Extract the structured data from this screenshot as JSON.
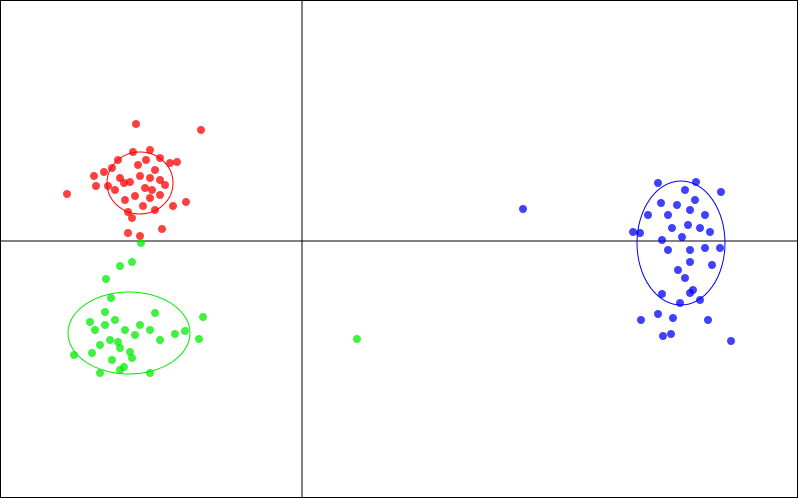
{
  "chart_data": {
    "type": "scatter",
    "xlim": [
      -302,
      496
    ],
    "ylim": [
      -257,
      241
    ],
    "series": [
      {
        "color": "#ff0000",
        "x": [
          -166,
          -101,
          -235,
          -162,
          -174,
          -140,
          -129,
          -116,
          -208,
          -198,
          -184,
          -169,
          -152,
          -142,
          -125,
          -132,
          -206,
          -194,
          -182,
          -172,
          -162,
          -152,
          -142,
          -157,
          -167,
          -177,
          -152,
          -142,
          -174,
          -170,
          -147,
          -159,
          -187,
          -190,
          -137,
          -147,
          -164,
          -156,
          -178,
          -150
        ],
        "y": [
          117,
          111,
          47,
          5,
          8,
          12,
          35,
          39,
          65,
          69,
          81,
          89,
          91,
          83,
          79,
          78,
          55,
          55,
          63,
          59,
          65,
          63,
          61,
          53,
          45,
          41,
          43,
          46,
          29,
          23,
          31,
          35,
          51,
          73,
          56,
          71,
          76,
          81,
          58,
          51
        ],
        "ellipse": {
          "cx": -162,
          "cy": 58,
          "rx": 33,
          "ry": 31
        }
      },
      {
        "color": "#00ee00",
        "x": [
          -161,
          -170,
          -182,
          -196,
          -191,
          -99,
          -228,
          -202,
          -152,
          -182,
          -178,
          -103,
          -117,
          -127,
          -212,
          -207,
          -197,
          -187,
          -177,
          -167,
          -192,
          -202,
          -182,
          -172,
          -162,
          -147,
          -152,
          -142,
          -190,
          -170,
          -197,
          -184,
          -210,
          55
        ],
        "y": [
          -2,
          -21,
          -25,
          -38,
          -57,
          -76,
          -114,
          -132,
          -132,
          -129,
          -126,
          -98,
          -90,
          -93,
          -81,
          -89,
          -84,
          -79,
          -89,
          -94,
          -99,
          -104,
          -107,
          -111,
          -84,
          -72,
          -89,
          -99,
          -119,
          -117,
          -71,
          -101,
          -112,
          -98
        ],
        "ellipse": {
          "cx": -173,
          "cy": -92,
          "rx": 61,
          "ry": 41
        }
      },
      {
        "color": "#0000ff",
        "x": [
          221,
          356,
          394,
          419,
          331,
          338,
          359,
          375,
          388,
          403,
          393,
          383,
          366,
          370,
          386,
          398,
          380,
          360,
          366,
          388,
          403,
          418,
          410,
          388,
          376,
          383,
          388,
          360,
          378,
          391,
          356,
          339,
          371,
          406,
          361,
          369,
          429,
          398,
          346,
          408
        ],
        "y": [
          32,
          58,
          59,
          49,
          9,
          8,
          38,
          36,
          31,
          26,
          41,
          51,
          26,
          13,
          16,
          13,
          4,
          1,
          -9,
          -9,
          -7,
          -7,
          -24,
          -21,
          -29,
          -37,
          -52,
          -53,
          -62,
          -49,
          -73,
          -79,
          -77,
          -79,
          -95,
          -93,
          -100,
          -59,
          26,
          9
        ],
        "ellipse": {
          "cx": 379,
          "cy": -2,
          "rx": 44,
          "ry": 62
        }
      }
    ]
  }
}
